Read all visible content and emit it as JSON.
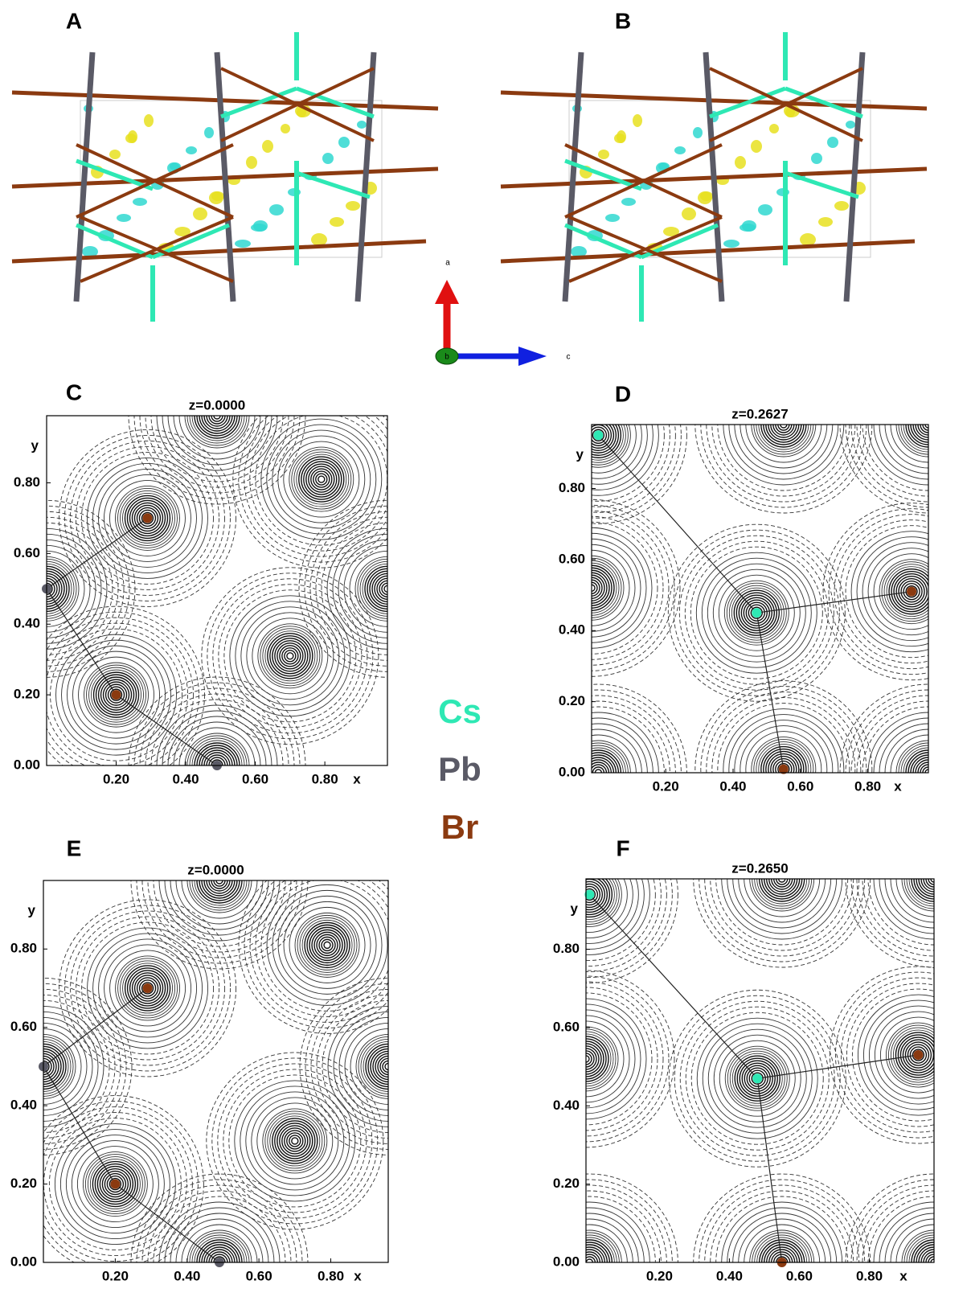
{
  "panel_labels": [
    "A",
    "B",
    "C",
    "D",
    "E",
    "F"
  ],
  "axis_triad": [
    "a",
    "b",
    "c"
  ],
  "legend": [
    {
      "name": "Cs",
      "color": "#2ee8b4"
    },
    {
      "name": "Pb",
      "color": "#5a5a66"
    },
    {
      "name": "Br",
      "color": "#8b3a10"
    }
  ],
  "chart_data": [
    {
      "type": "contour",
      "title": "z=0.0000",
      "xlabel": "x",
      "ylabel": "y",
      "xlim": [
        0,
        0.98
      ],
      "ylim": [
        0,
        0.99
      ],
      "xticks": [
        {
          "value": 0.2,
          "label": "0.20"
        },
        {
          "value": 0.4,
          "label": "0.40"
        },
        {
          "value": 0.6,
          "label": "0.60"
        },
        {
          "value": 0.8,
          "label": "0.80"
        }
      ],
      "yticks": [
        {
          "value": 0,
          "label": "0.00"
        },
        {
          "value": 0.2,
          "label": "0.20"
        },
        {
          "value": 0.4,
          "label": "0.40"
        },
        {
          "value": 0.6,
          "label": "0.60"
        },
        {
          "value": 0.8,
          "label": "0.80"
        }
      ],
      "series": [
        {
          "color": "#5a5a66",
          "x": [
            0,
            0.49
          ],
          "y": [
            0.5,
            0
          ]
        },
        {
          "color": "#8b3a10",
          "x": [
            0.29,
            0.2
          ],
          "y": [
            0.7,
            0.2
          ]
        }
      ],
      "bonds": [
        {
          "x": [
            0.29,
            0
          ],
          "y": [
            0.7,
            0.5
          ]
        },
        {
          "x": [
            0,
            0.2
          ],
          "y": [
            0.5,
            0.2
          ]
        },
        {
          "x": [
            0.2,
            0.49
          ],
          "y": [
            0.2,
            0
          ]
        }
      ],
      "contour_centers": {
        "x": [
          0,
          0.49,
          0.98,
          0.49,
          0.29,
          0.2,
          0.79,
          0.7
        ],
        "y": [
          0.5,
          0,
          0.5,
          0.99,
          0.7,
          0.2,
          0.81,
          0.31
        ]
      }
    },
    {
      "type": "contour",
      "title": "z=0.2627",
      "xlabel": "x",
      "ylabel": "y",
      "xlim": [
        -0.02,
        0.98
      ],
      "ylim": [
        0,
        0.98
      ],
      "xticks": [
        {
          "value": 0.2,
          "label": "0.20"
        },
        {
          "value": 0.4,
          "label": "0.40"
        },
        {
          "value": 0.6,
          "label": "0.60"
        },
        {
          "value": 0.8,
          "label": "0.80"
        }
      ],
      "yticks": [
        {
          "value": 0,
          "label": "0.00"
        },
        {
          "value": 0.2,
          "label": "0.20"
        },
        {
          "value": 0.4,
          "label": "0.40"
        },
        {
          "value": 0.6,
          "label": "0.60"
        },
        {
          "value": 0.8,
          "label": "0.80"
        }
      ],
      "series": [
        {
          "color": "#2ee8b4",
          "x": [
            0,
            0.47
          ],
          "y": [
            0.95,
            0.45
          ]
        },
        {
          "color": "#8b3a10",
          "x": [
            0.55,
            0.93
          ],
          "y": [
            0.01,
            0.51
          ]
        }
      ],
      "bonds": [
        {
          "x": [
            0,
            0.47
          ],
          "y": [
            0.95,
            0.45
          ]
        },
        {
          "x": [
            0.47,
            0.93
          ],
          "y": [
            0.45,
            0.51
          ]
        },
        {
          "x": [
            0.47,
            0.55
          ],
          "y": [
            0.45,
            0.01
          ]
        }
      ],
      "contour_centers": {
        "x": [
          0,
          0.47,
          0.55,
          0.93,
          0.55,
          -0.02,
          0.98,
          0.98,
          0
        ],
        "y": [
          0.95,
          0.45,
          0.01,
          0.51,
          0.98,
          0.52,
          0.98,
          0,
          0
        ]
      }
    },
    {
      "type": "contour",
      "title": "z=0.0000",
      "xlabel": "x",
      "ylabel": "y",
      "xlim": [
        0,
        0.96
      ],
      "ylim": [
        0,
        0.975
      ],
      "xticks": [
        {
          "value": 0.2,
          "label": "0.20"
        },
        {
          "value": 0.4,
          "label": "0.40"
        },
        {
          "value": 0.6,
          "label": "0.60"
        },
        {
          "value": 0.8,
          "label": "0.80"
        }
      ],
      "yticks": [
        {
          "value": 0,
          "label": "0.00"
        },
        {
          "value": 0.2,
          "label": "0.20"
        },
        {
          "value": 0.4,
          "label": "0.40"
        },
        {
          "value": 0.6,
          "label": "0.60"
        },
        {
          "value": 0.8,
          "label": "0.80"
        }
      ],
      "series": [
        {
          "color": "#5a5a66",
          "x": [
            0,
            0.49
          ],
          "y": [
            0.5,
            0
          ]
        },
        {
          "color": "#8b3a10",
          "x": [
            0.29,
            0.2
          ],
          "y": [
            0.7,
            0.2
          ]
        }
      ],
      "bonds": [
        {
          "x": [
            0.29,
            0
          ],
          "y": [
            0.7,
            0.5
          ]
        },
        {
          "x": [
            0,
            0.2
          ],
          "y": [
            0.5,
            0.2
          ]
        },
        {
          "x": [
            0.2,
            0.49
          ],
          "y": [
            0.2,
            0
          ]
        }
      ],
      "contour_centers": {
        "x": [
          0,
          0.49,
          0.96,
          0.49,
          0.29,
          0.2,
          0.79,
          0.7
        ],
        "y": [
          0.5,
          0,
          0.5,
          0.975,
          0.7,
          0.2,
          0.81,
          0.31
        ]
      }
    },
    {
      "type": "contour",
      "title": "z=0.2650",
      "xlabel": "x",
      "ylabel": "y",
      "xlim": [
        -0.01,
        0.985
      ],
      "ylim": [
        0,
        0.98
      ],
      "xticks": [
        {
          "value": 0.2,
          "label": "0.20"
        },
        {
          "value": 0.4,
          "label": "0.40"
        },
        {
          "value": 0.6,
          "label": "0.60"
        },
        {
          "value": 0.8,
          "label": "0.80"
        }
      ],
      "yticks": [
        {
          "value": 0,
          "label": "0.00"
        },
        {
          "value": 0.2,
          "label": "0.20"
        },
        {
          "value": 0.4,
          "label": "0.40"
        },
        {
          "value": 0.6,
          "label": "0.60"
        },
        {
          "value": 0.8,
          "label": "0.80"
        }
      ],
      "series": [
        {
          "color": "#2ee8b4",
          "x": [
            0,
            0.48
          ],
          "y": [
            0.94,
            0.47
          ]
        },
        {
          "color": "#8b3a10",
          "x": [
            0.55,
            0.94
          ],
          "y": [
            0,
            0.53
          ]
        }
      ],
      "bonds": [
        {
          "x": [
            0,
            0.48
          ],
          "y": [
            0.94,
            0.47
          ]
        },
        {
          "x": [
            0.48,
            0.94
          ],
          "y": [
            0.47,
            0.53
          ]
        },
        {
          "x": [
            0.48,
            0.55
          ],
          "y": [
            0.47,
            0
          ]
        }
      ],
      "contour_centers": {
        "x": [
          0,
          0.48,
          0.55,
          0.94,
          0.55,
          -0.01,
          0.985,
          0.985,
          0
        ],
        "y": [
          0.94,
          0.47,
          0,
          0.53,
          0.98,
          0.52,
          0.98,
          0,
          0
        ]
      }
    }
  ]
}
